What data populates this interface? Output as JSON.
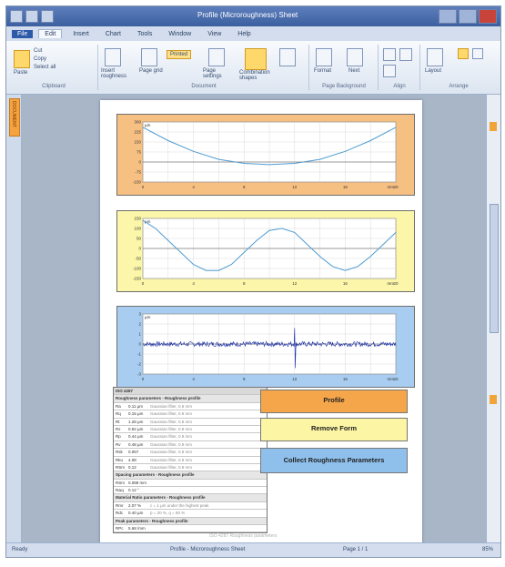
{
  "window": {
    "title": "Profile (Microroughness) Sheet"
  },
  "tabs": [
    {
      "label": "File"
    },
    {
      "label": "Edit"
    },
    {
      "label": "Insert"
    },
    {
      "label": "Chart"
    },
    {
      "label": "Tools"
    },
    {
      "label": "Window"
    },
    {
      "label": "View"
    },
    {
      "label": "Help"
    }
  ],
  "ribbon": {
    "groups": [
      {
        "label": "Clipboard"
      },
      {
        "label": "Document"
      },
      {
        "label": "Page Background"
      },
      {
        "label": "Align"
      },
      {
        "label": "Arrange"
      }
    ],
    "buttons": {
      "paste": "Paste",
      "cut": "Cut",
      "copy": "Copy",
      "select_all": "Select all",
      "insert_roughness": "Insert roughness",
      "page_grid": "Page grid",
      "printed": "Printed",
      "page_settings": "Page settings",
      "combination_shapes": "Combination shapes",
      "page_background": "Page background",
      "format": "Format",
      "next": "Next",
      "layout": "Layout"
    }
  },
  "left_panel": {
    "tab_label": "DOCUMENT"
  },
  "status": {
    "left": "Ready",
    "center": "Profile - Microroughness Sheet",
    "page": "Page 1 / 1",
    "zoom": "85%"
  },
  "page": {
    "table": {
      "title": "ISO 4287",
      "rows": [
        {
          "kind": "section",
          "label": "Roughness parameters - Roughness profile"
        },
        {
          "kind": "row",
          "name": "Ra",
          "value": "0.11 µm",
          "note": "Gaussian filter, 0.8 mm"
        },
        {
          "kind": "row",
          "name": "Rq",
          "value": "0.15 µm",
          "note": "Gaussian filter, 0.8 mm"
        },
        {
          "kind": "row",
          "name": "Rt",
          "value": "1.28 µm",
          "note": "Gaussian filter, 0.8 mm"
        },
        {
          "kind": "row",
          "name": "Rz",
          "value": "0.92 µm",
          "note": "Gaussian filter, 0.8 mm"
        },
        {
          "kind": "row",
          "name": "Rp",
          "value": "0.44 µm",
          "note": "Gaussian filter, 0.8 mm"
        },
        {
          "kind": "row",
          "name": "Rv",
          "value": "0.48 µm",
          "note": "Gaussian filter, 0.8 mm"
        },
        {
          "kind": "row",
          "name": "Rsk",
          "value": "0.057",
          "note": "Gaussian filter, 0.8 mm"
        },
        {
          "kind": "row",
          "name": "Rku",
          "value": "4.08",
          "note": "Gaussian filter, 0.8 mm"
        },
        {
          "kind": "row",
          "name": "RSm",
          "value": "0.12",
          "note": "Gaussian filter, 0.8 mm"
        },
        {
          "kind": "section",
          "label": "Spacing parameters - Roughness profile"
        },
        {
          "kind": "row",
          "name": "RSm",
          "value": "0.088 mm",
          "note": ""
        },
        {
          "kind": "row",
          "name": "RΔq",
          "value": "0.12 °",
          "note": ""
        },
        {
          "kind": "section",
          "label": "Material Ratio parameters - Roughness profile"
        },
        {
          "kind": "row",
          "name": "Rmr",
          "value": "2.07 %",
          "note": "c = 1 µm under the highest peak"
        },
        {
          "kind": "row",
          "name": "Rdc",
          "value": "0.40 µm",
          "note": "p = 20 %, q = 80 %"
        },
        {
          "kind": "section",
          "label": "Peak parameters - Roughness profile"
        },
        {
          "kind": "row",
          "name": "RPc",
          "value": "5.68 /mm",
          "note": ""
        }
      ]
    },
    "buttons": {
      "profile": "Profile",
      "remove_form": "Remove Form",
      "collect": "Collect Roughness Parameters"
    },
    "footer": "ISO 4287 Roughness parameters"
  },
  "chart_data": [
    {
      "type": "line",
      "name": "form profile",
      "x": [
        0,
        2,
        4,
        6,
        8,
        10,
        12,
        14,
        16,
        18,
        20
      ],
      "y": [
        260,
        160,
        80,
        20,
        -10,
        -20,
        -10,
        20,
        80,
        160,
        260
      ],
      "ylim": [
        -150,
        300
      ],
      "xlim": [
        0,
        20
      ],
      "xunit": "mm",
      "yunit": "µm",
      "grid": true,
      "color": "#4f9bd1"
    },
    {
      "type": "line",
      "name": "waviness profile",
      "x": [
        0,
        1,
        2,
        3,
        4,
        5,
        6,
        7,
        8,
        9,
        10,
        11,
        12,
        13,
        14,
        15,
        16,
        17,
        18,
        19,
        20
      ],
      "y": [
        140,
        100,
        40,
        -20,
        -80,
        -110,
        -110,
        -80,
        -20,
        40,
        90,
        100,
        80,
        20,
        -40,
        -90,
        -110,
        -90,
        -40,
        20,
        80
      ],
      "ylim": [
        -150,
        150
      ],
      "xlim": [
        0,
        20
      ],
      "xunit": "mm",
      "yunit": "µm",
      "grid": true,
      "color": "#4f9bd1"
    },
    {
      "type": "line",
      "name": "roughness profile",
      "xlim": [
        0,
        20
      ],
      "ylim": [
        -3,
        3
      ],
      "xunit": "mm",
      "yunit": "µm",
      "grid": true,
      "color": "#1a2fa8",
      "note": "noise-like roughness signal with spike near x = 12"
    }
  ],
  "colors": {
    "chart1_bg": "#f7c083",
    "chart2_bg": "#fbf6a9",
    "chart3_bg": "#a8cdf0",
    "button_profile": "#f6a64a",
    "button_remove": "#fcf5a3",
    "button_collect": "#8fc0ec"
  }
}
